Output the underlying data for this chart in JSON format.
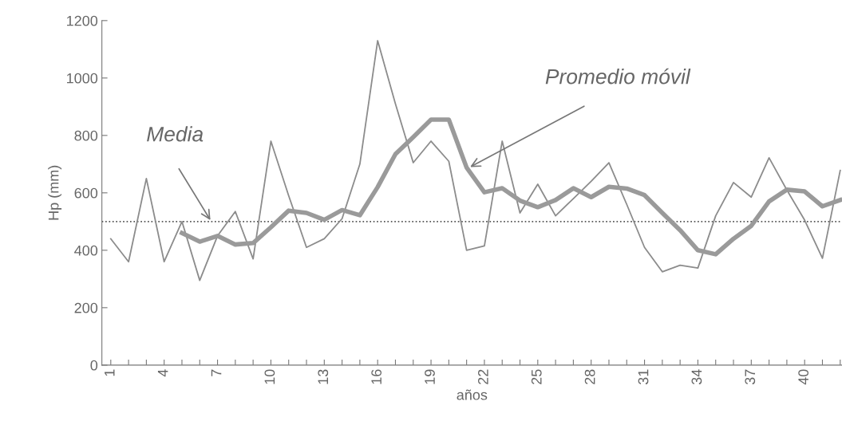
{
  "chart_data": {
    "type": "line",
    "xlabel": "años",
    "ylabel": "Hp (mm)",
    "xlim": [
      0.5,
      42.1
    ],
    "ylim": [
      0,
      1200
    ],
    "yticks": [
      0,
      200,
      400,
      600,
      800,
      1000,
      1200
    ],
    "xticks": [
      1,
      {
        "value": 2,
        "label": null
      },
      {
        "value": 3,
        "label": null
      },
      4,
      {
        "value": 5,
        "label": null
      },
      {
        "value": 6,
        "label": null
      },
      7,
      {
        "value": 8,
        "label": null
      },
      {
        "value": 9,
        "label": null
      },
      10,
      {
        "value": 11,
        "label": null
      },
      {
        "value": 12,
        "label": null
      },
      13,
      {
        "value": 14,
        "label": null
      },
      {
        "value": 15,
        "label": null
      },
      16,
      {
        "value": 17,
        "label": null
      },
      {
        "value": 18,
        "label": null
      },
      19,
      {
        "value": 20,
        "label": null
      },
      {
        "value": 21,
        "label": null
      },
      22,
      {
        "value": 23,
        "label": null
      },
      {
        "value": 24,
        "label": null
      },
      25,
      {
        "value": 26,
        "label": null
      },
      {
        "value": 27,
        "label": null
      },
      28,
      {
        "value": 29,
        "label": null
      },
      {
        "value": 30,
        "label": null
      },
      31,
      {
        "value": 32,
        "label": null
      },
      {
        "value": 33,
        "label": null
      },
      34,
      {
        "value": 35,
        "label": null
      },
      {
        "value": 36,
        "label": null
      },
      37,
      {
        "value": 38,
        "label": null
      },
      {
        "value": 39,
        "label": null
      },
      40,
      {
        "value": 41,
        "label": null
      },
      {
        "value": 42,
        "label": null
      }
    ],
    "grid": false,
    "marker": "none",
    "line_style": "solid",
    "series": [
      {
        "color": "#8c8c8c",
        "x": [
          1,
          2,
          3,
          4,
          5,
          6,
          7,
          8,
          9,
          10,
          11,
          12,
          13,
          14,
          15,
          16,
          17,
          18,
          19,
          20,
          21,
          22,
          23,
          24,
          25,
          26,
          27,
          28,
          29,
          30,
          31,
          32,
          33,
          34,
          35,
          36,
          37,
          38,
          39,
          40,
          41,
          42
        ],
        "values": [
          440,
          360,
          650,
          360,
          500,
          295,
          450,
          535,
          370,
          780,
          590,
          410,
          440,
          510,
          700,
          1130,
          910,
          705,
          780,
          710,
          400,
          415,
          780,
          530,
          630,
          520,
          580,
          640,
          705,
          560,
          410,
          325,
          348,
          338,
          520,
          636,
          585,
          722,
          610,
          505,
          372,
          678
        ]
      },
      {
        "color": "#9a9a9a",
        "x": [
          5,
          6,
          7,
          8,
          9,
          10,
          11,
          12,
          13,
          14,
          15,
          16,
          17,
          18,
          19,
          20,
          21,
          22,
          23,
          24,
          25,
          26,
          27,
          28,
          29,
          30,
          31,
          32,
          33,
          34,
          35,
          36,
          37,
          38,
          39,
          40,
          41,
          42
        ],
        "values": [
          460,
          430,
          450,
          420,
          425,
          480,
          538,
          530,
          506,
          540,
          522,
          620,
          735,
          794,
          855,
          855,
          688,
          602,
          616,
          573,
          550,
          575,
          616,
          585,
          621,
          615,
          592,
          530,
          470,
          400,
          386,
          440,
          485,
          570,
          611,
          605,
          553,
          575
        ]
      }
    ],
    "ref_lines": [
      {
        "axis": "y",
        "value": 500,
        "color": "#555555",
        "line_style": "dotted"
      }
    ],
    "annotations": [
      {
        "text": "Media",
        "x": 6.6,
        "y": 505
      },
      {
        "text": "Promedio móvil",
        "x": 21.2,
        "y": 690
      }
    ]
  }
}
